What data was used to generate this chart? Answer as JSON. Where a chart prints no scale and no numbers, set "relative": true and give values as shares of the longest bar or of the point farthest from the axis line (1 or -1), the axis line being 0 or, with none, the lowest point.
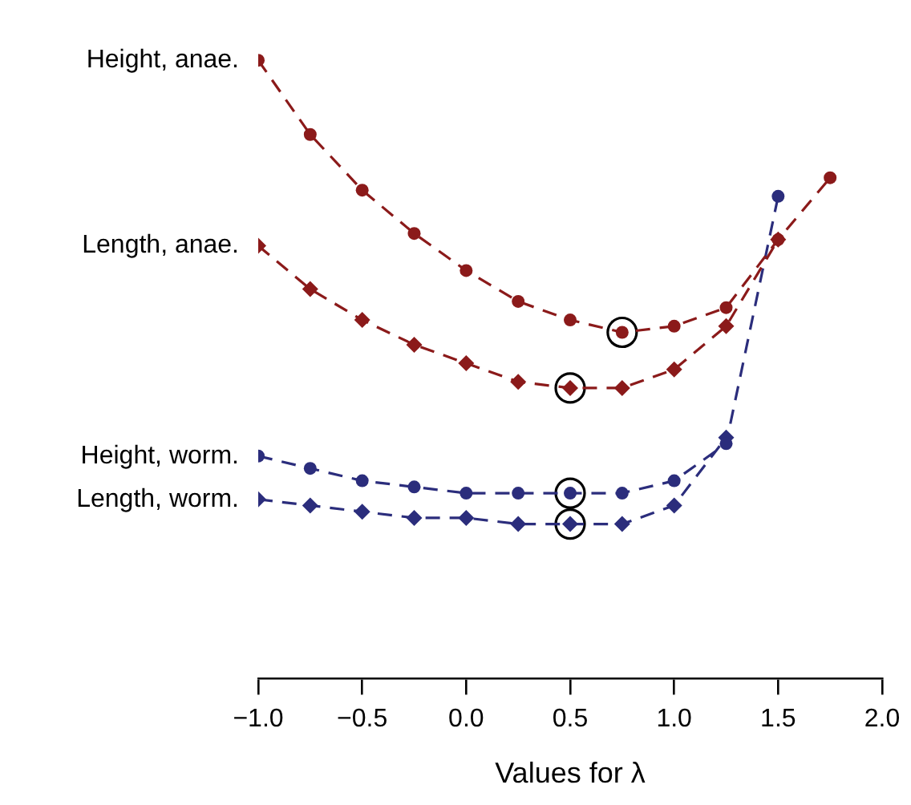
{
  "chart_data": {
    "type": "line",
    "relative": true,
    "xlabel": "Values for λ",
    "xlim": [
      -1,
      2
    ],
    "xticks": [
      {
        "value": -1,
        "label": "−1.0"
      },
      {
        "value": -0.5,
        "label": "−0.5"
      },
      {
        "value": 0,
        "label": "0.0"
      },
      {
        "value": 0.5,
        "label": "0.5"
      },
      {
        "value": 1,
        "label": "1.0"
      },
      {
        "value": 1.5,
        "label": "1.5"
      },
      {
        "value": 2,
        "label": "2.0"
      }
    ],
    "x": [
      -1,
      -0.75,
      -0.5,
      -0.25,
      0,
      0.25,
      0.5,
      0.75,
      1,
      1.25,
      1.5,
      1.75
    ],
    "legend": false,
    "grid": false,
    "line_style": "dashed",
    "series": [
      {
        "name": "Height, anae.",
        "color": "#8b1a1a",
        "marker": "circle",
        "values": [
          1,
          0.88,
          0.79,
          0.72,
          0.66,
          0.61,
          0.58,
          0.56,
          0.57,
          0.6,
          0.71,
          0.81
        ]
      },
      {
        "name": "Length, anae.",
        "color": "#8b1a1a",
        "marker": "diamond",
        "values": [
          0.7,
          0.63,
          0.58,
          0.54,
          0.51,
          0.48,
          0.47,
          0.47,
          0.5,
          0.57,
          0.71,
          null
        ]
      },
      {
        "name": "Height, worm.",
        "color": "#2b2d7c",
        "marker": "circle",
        "values": [
          0.36,
          0.34,
          0.32,
          0.31,
          0.3,
          0.3,
          0.3,
          0.3,
          0.32,
          0.38,
          0.78,
          null
        ]
      },
      {
        "name": "Length, worm.",
        "color": "#2b2d7c",
        "marker": "diamond",
        "values": [
          0.29,
          0.28,
          0.27,
          0.26,
          0.26,
          0.25,
          0.25,
          0.25,
          0.28,
          0.39,
          null,
          null
        ]
      },
      {
        "type": "scatter",
        "color": "#000000",
        "marker": "circle",
        "values": [
          null,
          null,
          null,
          null,
          null,
          null,
          0.47,
          0.56,
          null,
          null,
          null,
          null
        ]
      },
      {
        "type": "scatter",
        "color": "#000000",
        "marker": "circle",
        "values": [
          null,
          null,
          null,
          null,
          null,
          null,
          0.3,
          null,
          null,
          null,
          null,
          null
        ]
      },
      {
        "type": "scatter",
        "color": "#000000",
        "marker": "circle",
        "values": [
          null,
          null,
          null,
          null,
          null,
          null,
          0.25,
          null,
          null,
          null,
          null,
          null
        ]
      }
    ]
  }
}
